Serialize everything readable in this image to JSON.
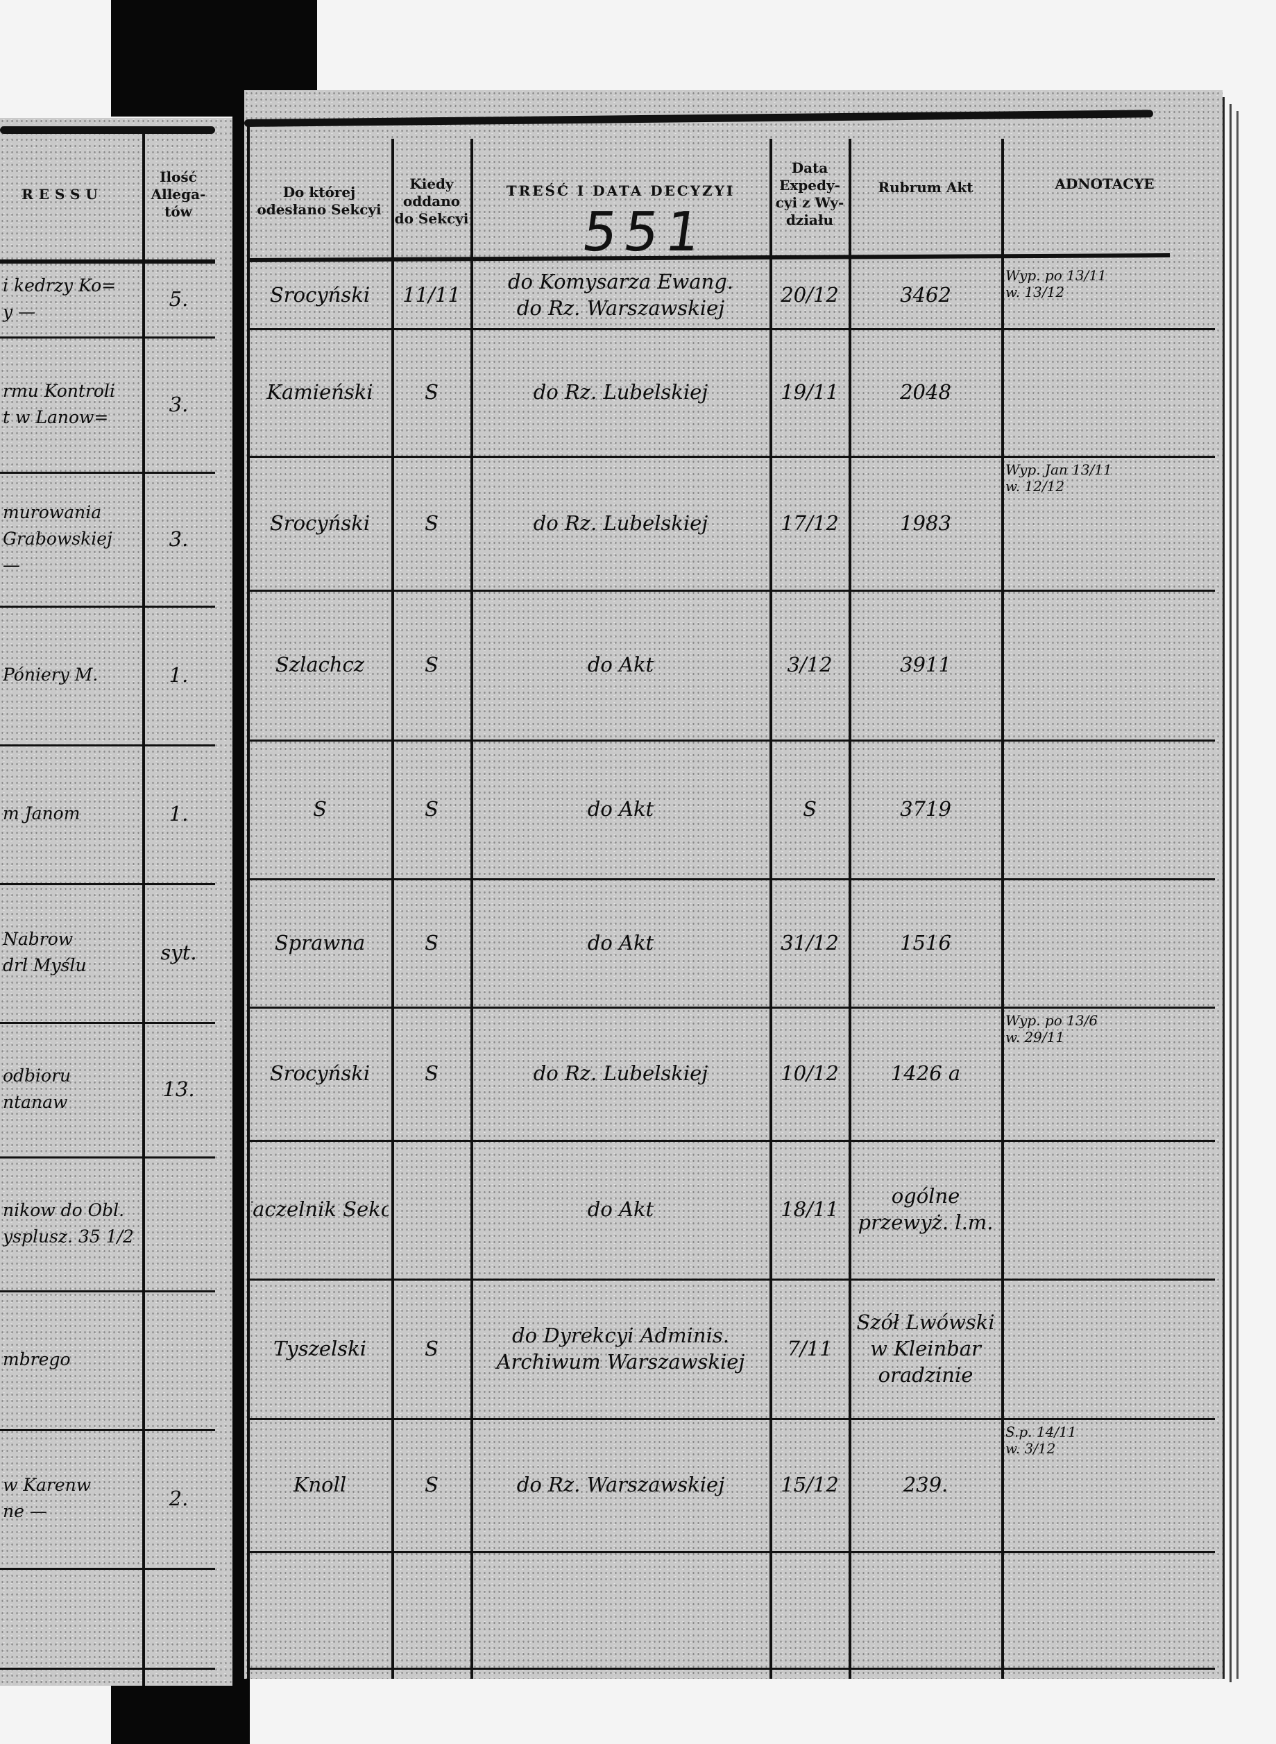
{
  "stamp_number": "551",
  "left_page": {
    "headers": {
      "subject_fragment": "RESSU",
      "attachments": "Ilość Allega- tów"
    },
    "rows": [
      {
        "text": [
          "i kedrzy Ko=",
          "y —"
        ],
        "attachments": "5."
      },
      {
        "text": [
          "rmu Kontroli",
          "t w Lanow="
        ],
        "attachments": "3."
      },
      {
        "text": [
          "murowania",
          "Grabowskiej",
          "—"
        ],
        "attachments": "3."
      },
      {
        "text": [
          "Póniery M."
        ],
        "attachments": "1."
      },
      {
        "text": [
          "m Janom"
        ],
        "attachments": "1."
      },
      {
        "text": [
          "Nabrow",
          "drl Myślu"
        ],
        "attachments": "syt."
      },
      {
        "text": [
          "odbioru",
          "ntanaw"
        ],
        "attachments": "13."
      },
      {
        "text": [
          "nikow do Obl.",
          "ysplusz. 35 1/2"
        ],
        "attachments": ""
      },
      {
        "text": [
          "mbrego"
        ],
        "attachments": ""
      },
      {
        "text": [
          "w Karenw",
          "ne —"
        ],
        "attachments": "2."
      },
      {
        "text": [],
        "attachments": ""
      }
    ]
  },
  "right_page": {
    "headers": {
      "section": "Do której odesłano Sekcyi",
      "when_given": "Kiedy oddano do Sekcyi",
      "decision": "TREŚĆ I DATA DECYZYI",
      "dispatch_date": "Data Expedy- cyi z Wy- działu",
      "rubrum": "Rubrum Akt",
      "annotations": "ADNOTACYE"
    },
    "rows": [
      {
        "section": "Srocyński",
        "when": "11/11",
        "decision": [
          "do Komysarza Ewang.",
          "do Rz. Warszawskiej"
        ],
        "dispatch": "20/12",
        "rubrum": [
          "3462"
        ],
        "notes": [
          "Wyp. po 13/11",
          "w. 13/12"
        ]
      },
      {
        "section": "Kamieński",
        "when": "S",
        "decision": [
          "do Rz. Lubelskiej"
        ],
        "dispatch": "19/11",
        "rubrum": [
          "2048"
        ],
        "notes": []
      },
      {
        "section": "Srocyński",
        "when": "S",
        "decision": [
          "do Rz. Lubelskiej"
        ],
        "dispatch": "17/12",
        "rubrum": [
          "1983"
        ],
        "notes": [
          "Wyp. Jan 13/11",
          "w. 12/12"
        ]
      },
      {
        "section": "Szlachcz",
        "when": "S",
        "decision": [
          "do Akt"
        ],
        "dispatch": "3/12",
        "rubrum": [
          "3911"
        ],
        "notes": []
      },
      {
        "section": "S",
        "when": "S",
        "decision": [
          "do Akt"
        ],
        "dispatch": "S",
        "rubrum": [
          "3719"
        ],
        "notes": []
      },
      {
        "section": "Sprawna",
        "when": "S",
        "decision": [
          "do Akt"
        ],
        "dispatch": "31/12",
        "rubrum": [
          "1516"
        ],
        "notes": []
      },
      {
        "section": "Srocyński",
        "when": "S",
        "decision": [
          "do Rz. Lubelskiej"
        ],
        "dispatch": "10/12",
        "rubrum": [
          "1426 a"
        ],
        "notes": [
          "Wyp. po 13/6",
          "w. 29/11"
        ]
      },
      {
        "section": "Naczelnik Sekcji",
        "when": "",
        "decision": [
          "do Akt"
        ],
        "dispatch": "18/11",
        "rubrum": [
          "ogólne",
          "przewyż. l.m."
        ],
        "notes": []
      },
      {
        "section": "Tyszelski",
        "when": "S",
        "decision": [
          "do Dyrekcyi Adminis.",
          "Archiwum Warszawskiej"
        ],
        "dispatch": "7/11",
        "rubrum": [
          "Szół Lwówski",
          "w Kleinbar",
          "oradzinie"
        ],
        "notes": []
      },
      {
        "section": "Knoll",
        "when": "S",
        "decision": [
          "do Rz. Warszawskiej"
        ],
        "dispatch": "15/12",
        "rubrum": [
          "239."
        ],
        "notes": [
          "S.p. 14/11",
          "w. 3/12"
        ]
      },
      {
        "section": "",
        "when": "",
        "decision": [],
        "dispatch": "",
        "rubrum": [],
        "notes": []
      }
    ]
  }
}
